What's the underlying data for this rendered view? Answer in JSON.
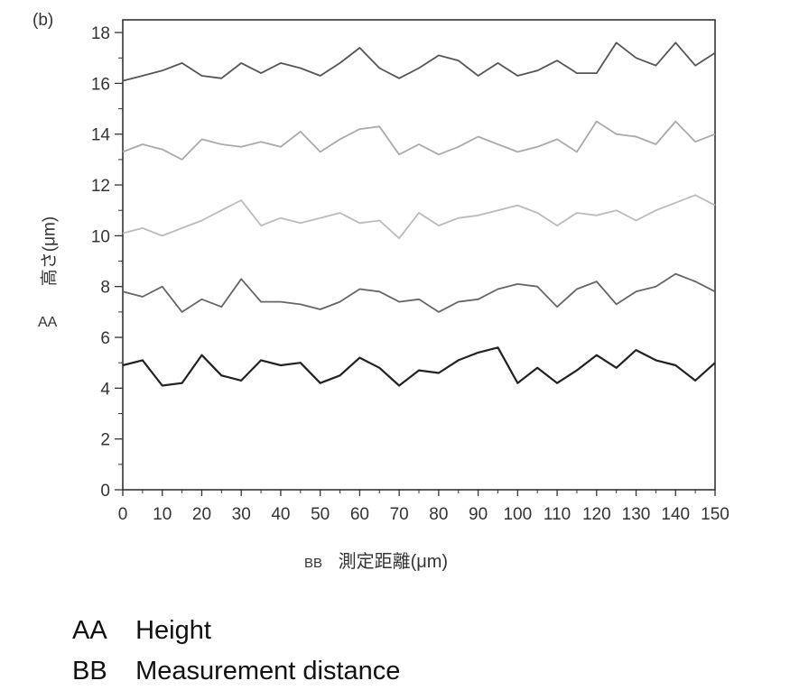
{
  "panel_label": "(b)",
  "legend": [
    {
      "key": "AA",
      "text": "Height"
    },
    {
      "key": "BB",
      "text": "Measurement distance"
    }
  ],
  "chart_data": {
    "type": "line",
    "title": "",
    "xlabel": "測定距離(μm)",
    "xlabel_key": "BB",
    "ylabel": "高さ(μm)",
    "ylabel_key": "AA",
    "xlim": [
      0,
      150
    ],
    "ylim": [
      0,
      18.5
    ],
    "xticks": [
      0,
      10,
      20,
      30,
      40,
      50,
      60,
      70,
      80,
      90,
      100,
      110,
      120,
      130,
      140,
      150
    ],
    "yticks": [
      0,
      2,
      4,
      6,
      8,
      10,
      12,
      14,
      16,
      18
    ],
    "grid": false,
    "legend": "none",
    "x": [
      0,
      5,
      10,
      15,
      20,
      25,
      30,
      35,
      40,
      45,
      50,
      55,
      60,
      65,
      70,
      75,
      80,
      85,
      90,
      95,
      100,
      105,
      110,
      115,
      120,
      125,
      130,
      135,
      140,
      145,
      150
    ],
    "series": [
      {
        "color": "#555555",
        "values": [
          16.1,
          16.3,
          16.5,
          16.8,
          16.3,
          16.2,
          16.8,
          16.4,
          16.8,
          16.6,
          16.3,
          16.8,
          17.4,
          16.6,
          16.2,
          16.6,
          17.1,
          16.9,
          16.3,
          16.8,
          16.3,
          16.5,
          16.9,
          16.4,
          16.4,
          17.6,
          17.0,
          16.7,
          17.6,
          16.7,
          17.2
        ]
      },
      {
        "color": "#aaaaaa",
        "values": [
          13.3,
          13.6,
          13.4,
          13.0,
          13.8,
          13.6,
          13.5,
          13.7,
          13.5,
          14.1,
          13.3,
          13.8,
          14.2,
          14.3,
          13.2,
          13.6,
          13.2,
          13.5,
          13.9,
          13.6,
          13.3,
          13.5,
          13.8,
          13.3,
          14.5,
          14.0,
          13.9,
          13.6,
          14.5,
          13.7,
          14.0
        ]
      },
      {
        "color": "#bbbbbb",
        "values": [
          10.1,
          10.3,
          10.0,
          10.3,
          10.6,
          11.0,
          11.4,
          10.4,
          10.7,
          10.5,
          10.7,
          10.9,
          10.5,
          10.6,
          9.9,
          10.9,
          10.4,
          10.7,
          10.8,
          11.0,
          11.2,
          10.9,
          10.4,
          10.9,
          10.8,
          11.0,
          10.6,
          11.0,
          11.3,
          11.6,
          11.2
        ]
      },
      {
        "color": "#666666",
        "values": [
          7.8,
          7.6,
          8.0,
          7.0,
          7.5,
          7.2,
          8.3,
          7.4,
          7.4,
          7.3,
          7.1,
          7.4,
          7.9,
          7.8,
          7.4,
          7.5,
          7.0,
          7.4,
          7.5,
          7.9,
          8.1,
          8.0,
          7.2,
          7.9,
          8.2,
          7.3,
          7.8,
          8.0,
          8.5,
          8.2,
          7.8
        ]
      },
      {
        "color": "#222222",
        "values": [
          4.9,
          5.1,
          4.1,
          4.2,
          5.3,
          4.5,
          4.3,
          5.1,
          4.9,
          5.0,
          4.2,
          4.5,
          5.2,
          4.8,
          4.1,
          4.7,
          4.6,
          5.1,
          5.4,
          5.6,
          4.2,
          4.8,
          4.2,
          4.7,
          5.3,
          4.8,
          5.5,
          5.1,
          4.9,
          4.3,
          5.0
        ]
      }
    ]
  }
}
